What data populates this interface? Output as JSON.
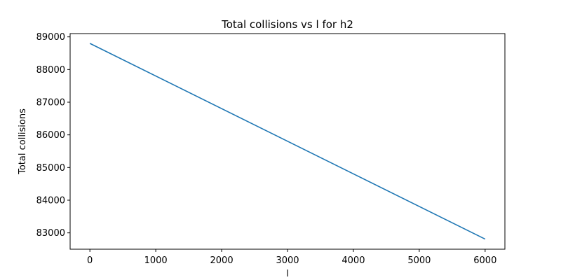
{
  "chart_data": {
    "type": "line",
    "title": "Total collisions vs l for h2",
    "xlabel": "l",
    "ylabel": "Total collisions",
    "xlim": [
      -300,
      6300
    ],
    "ylim": [
      82500,
      89100
    ],
    "x_ticks": [
      0,
      1000,
      2000,
      3000,
      4000,
      5000,
      6000
    ],
    "y_ticks": [
      83000,
      84000,
      85000,
      86000,
      87000,
      88000,
      89000
    ],
    "grid": false,
    "series": [
      {
        "color": "#1f77b4",
        "x": [
          0,
          6000
        ],
        "y": [
          88800,
          82810
        ]
      }
    ]
  }
}
